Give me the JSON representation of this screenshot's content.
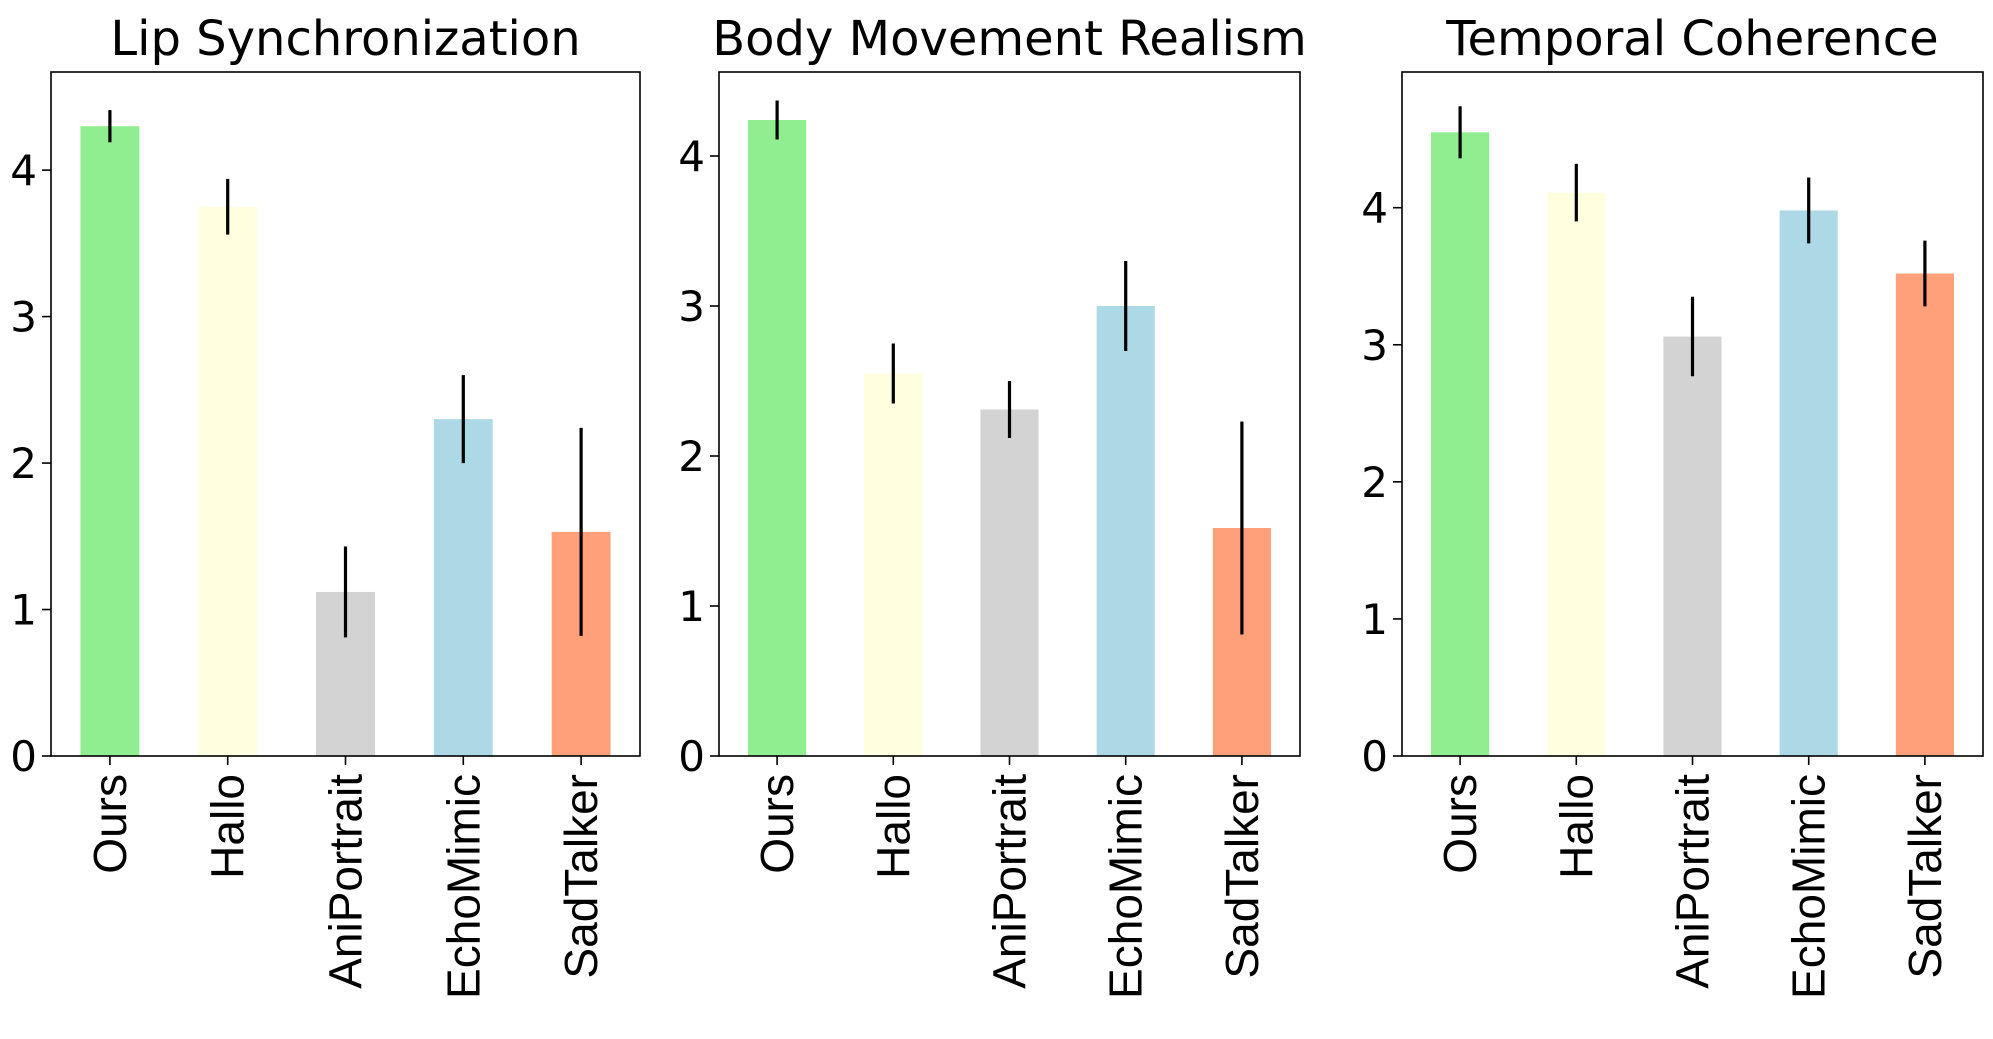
{
  "chart_data": [
    {
      "type": "bar",
      "title": "Lip Synchronization",
      "categories": [
        "Ours",
        "Hallo",
        "AniPortrait",
        "EchoMimic",
        "SadTalker"
      ],
      "values": [
        4.3,
        3.75,
        1.12,
        2.3,
        1.53
      ],
      "errors": [
        0.11,
        0.19,
        0.31,
        0.3,
        0.71
      ],
      "colors": [
        "#90ee90",
        "#ffffe0",
        "#d3d3d3",
        "#add8e6",
        "#ffa07a"
      ],
      "yticks": [
        0,
        1,
        2,
        3,
        4
      ],
      "ylim": [
        0,
        4.67
      ],
      "xlabel": "",
      "ylabel": "",
      "grid": false
    },
    {
      "type": "bar",
      "title": "Body Movement Realism",
      "categories": [
        "Ours",
        "Hallo",
        "AniPortrait",
        "EchoMimic",
        "SadTalker"
      ],
      "values": [
        4.24,
        2.55,
        2.31,
        3.0,
        1.52
      ],
      "errors": [
        0.13,
        0.2,
        0.19,
        0.3,
        0.71
      ],
      "colors": [
        "#90ee90",
        "#ffffe0",
        "#d3d3d3",
        "#add8e6",
        "#ffa07a"
      ],
      "yticks": [
        0,
        1,
        2,
        3,
        4
      ],
      "ylim": [
        0,
        4.56
      ],
      "xlabel": "",
      "ylabel": "",
      "grid": false
    },
    {
      "type": "bar",
      "title": "Temporal Coherence",
      "categories": [
        "Ours",
        "Hallo",
        "AniPortrait",
        "EchoMimic",
        "SadTalker"
      ],
      "values": [
        4.55,
        4.11,
        3.06,
        3.98,
        3.52
      ],
      "errors": [
        0.19,
        0.21,
        0.29,
        0.24,
        0.24
      ],
      "colors": [
        "#90ee90",
        "#ffffe0",
        "#d3d3d3",
        "#add8e6",
        "#ffa07a"
      ],
      "yticks": [
        0,
        1,
        2,
        3,
        4
      ],
      "ylim": [
        0,
        4.99
      ],
      "xlabel": "",
      "ylabel": "",
      "grid": false
    }
  ]
}
